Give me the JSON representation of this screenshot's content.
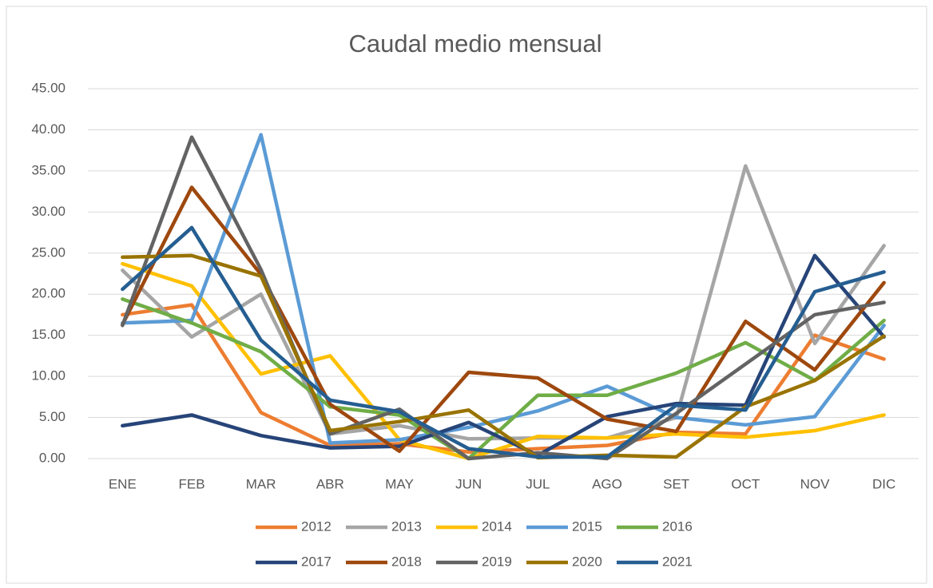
{
  "chart_data": {
    "type": "line",
    "title": "Caudal medio mensual",
    "categories": [
      "ENE",
      "FEB",
      "MAR",
      "ABR",
      "MAY",
      "JUN",
      "JUL",
      "AGO",
      "SET",
      "OCT",
      "NOV",
      "DIC"
    ],
    "ylim": [
      0,
      45
    ],
    "yticks": [
      {
        "value": 0,
        "label": "0.00"
      },
      {
        "value": 5,
        "label": "5.00"
      },
      {
        "value": 10,
        "label": "10.00"
      },
      {
        "value": 15,
        "label": "15.00"
      },
      {
        "value": 20,
        "label": "20.00"
      },
      {
        "value": 25,
        "label": "25.00"
      },
      {
        "value": 30,
        "label": "30.00"
      },
      {
        "value": 35,
        "label": "35.00"
      },
      {
        "value": 40,
        "label": "40.00"
      },
      {
        "value": 45,
        "label": "45.00"
      }
    ],
    "grid": true,
    "legend": "bottom",
    "series": [
      {
        "name": "2012",
        "color": "#ED7D31",
        "values": [
          17.5,
          18.7,
          5.6,
          1.6,
          1.8,
          0.8,
          1.2,
          1.6,
          3.2,
          3.0,
          15.0,
          12.1
        ]
      },
      {
        "name": "2013",
        "color": "#A5A5A5",
        "values": [
          22.9,
          14.8,
          20.0,
          3.0,
          4.0,
          2.4,
          2.5,
          2.5,
          5.0,
          35.6,
          14.0,
          25.9
        ]
      },
      {
        "name": "2014",
        "color": "#FFC000",
        "values": [
          23.7,
          21.0,
          10.3,
          12.5,
          2.3,
          0.0,
          2.7,
          2.5,
          3.0,
          2.6,
          3.4,
          5.3
        ]
      },
      {
        "name": "2015",
        "color": "#5B9BD5",
        "values": [
          16.5,
          16.8,
          39.4,
          1.9,
          2.3,
          3.8,
          5.8,
          8.8,
          5.0,
          4.1,
          5.1,
          16.2
        ]
      },
      {
        "name": "2016",
        "color": "#70AD47",
        "values": [
          19.4,
          16.5,
          13.0,
          6.3,
          5.3,
          0.0,
          7.7,
          7.7,
          10.4,
          14.1,
          9.5,
          16.8
        ]
      },
      {
        "name": "2017",
        "color": "#264478",
        "values": [
          4.0,
          5.3,
          2.8,
          1.3,
          1.5,
          4.4,
          0.4,
          5.1,
          6.7,
          6.5,
          24.7,
          14.8
        ]
      },
      {
        "name": "2018",
        "color": "#9E480E",
        "values": [
          16.3,
          33.0,
          22.4,
          6.6,
          0.9,
          10.5,
          9.8,
          4.8,
          3.3,
          16.7,
          10.8,
          21.4
        ]
      },
      {
        "name": "2019",
        "color": "#636363",
        "values": [
          16.2,
          39.1,
          23.0,
          3.0,
          6.0,
          0.0,
          0.7,
          0.0,
          5.5,
          11.5,
          17.5,
          19.0
        ]
      },
      {
        "name": "2020",
        "color": "#997300",
        "values": [
          24.5,
          24.7,
          22.2,
          3.4,
          4.5,
          5.9,
          0.1,
          0.4,
          0.2,
          6.3,
          9.5,
          14.9
        ]
      },
      {
        "name": "2021",
        "color": "#255E91",
        "values": [
          20.6,
          28.1,
          14.4,
          7.1,
          5.7,
          1.2,
          0.2,
          0.2,
          6.5,
          5.9,
          20.3,
          22.7
        ]
      }
    ]
  }
}
